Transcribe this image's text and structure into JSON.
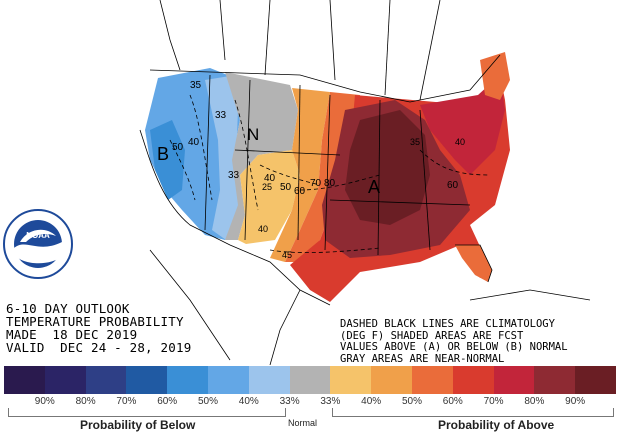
{
  "title_lines": {
    "line1": "6-10 DAY OUTLOOK",
    "line2": "TEMPERATURE PROBABILITY",
    "line3": "MADE  18 DEC 2019",
    "line4": "VALID  DEC 24 - 28, 2019"
  },
  "legend_note": {
    "line1": "DASHED BLACK LINES ARE CLIMATOLOGY",
    "line2": "(DEG F) SHADED AREAS ARE FCST",
    "line3": "VALUES ABOVE (A) OR BELOW (B) NORMAL",
    "line4": "GRAY AREAS ARE NEAR-NORMAL"
  },
  "map_labels": {
    "below_marker": "B",
    "near_normal_marker": "N",
    "above_marker": "A",
    "clim_50_west": "50",
    "clim_40_west": "40",
    "clim_35_nw": "35",
    "clim_33_north": "33",
    "clim_33_sw": "33",
    "clim_40_mid": "40",
    "clim_25": "25",
    "clim_50_mid": "50",
    "clim_60_mid": "60",
    "clim_70": "70",
    "clim_80": "80",
    "clim_35_ne": "35",
    "clim_40_ne": "40",
    "clim_60_se": "60",
    "clim_45_south": "45",
    "clim_40_sw": "40"
  },
  "scale": {
    "colors": [
      "#2a1a4e",
      "#2b2466",
      "#2e3f86",
      "#205aa3",
      "#3a8fd6",
      "#63a7e6",
      "#9cc4ec",
      "#b3b3b3",
      "#f5c36a",
      "#f0a04a",
      "#ea6c3a",
      "#d93b2e",
      "#c2253a",
      "#8e2a33",
      "#6a1e24"
    ],
    "ticks": [
      "90%",
      "80%",
      "70%",
      "60%",
      "50%",
      "40%",
      "33%",
      "33%",
      "40%",
      "50%",
      "60%",
      "70%",
      "80%",
      "90%"
    ]
  },
  "footer": {
    "below_label": "Probability of Below",
    "normal_label": "Normal",
    "above_label": "Probability of Above"
  },
  "logo_text": "NOAA"
}
